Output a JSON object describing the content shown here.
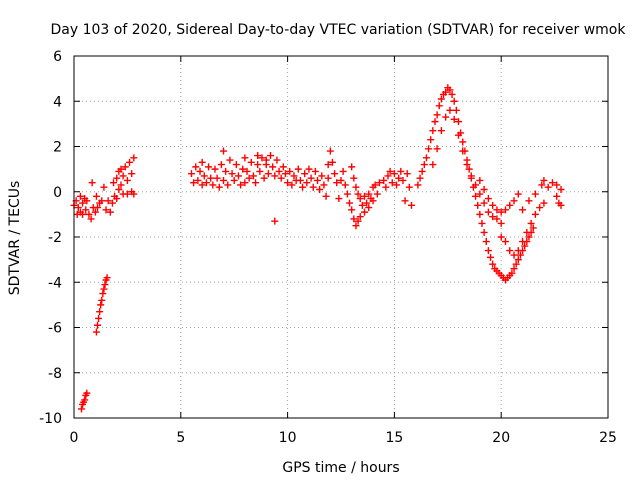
{
  "chart_data": {
    "type": "scatter",
    "title": "Day 103 of 2020, Sidereal Day-to-day VTEC variation (SDTVAR) for receiver wmok",
    "xlabel": "GPS time / hours",
    "ylabel": "SDTVAR / TECUs",
    "xlim": [
      0,
      25
    ],
    "ylim": [
      -10,
      6
    ],
    "grid": true,
    "marker": "plus",
    "color": "#ff0000",
    "x_ticks": [
      "0",
      "5",
      "10",
      "15",
      "20",
      "25"
    ],
    "y_ticks": [
      "-10",
      "-8",
      "-6",
      "-4",
      "-2",
      "0",
      "2",
      "4",
      "6"
    ],
    "series": [
      {
        "name": "SDTVAR",
        "points": [
          [
            0.0,
            -0.6
          ],
          [
            0.1,
            -0.4
          ],
          [
            0.15,
            -1.0
          ],
          [
            0.2,
            -0.7
          ],
          [
            0.3,
            -0.2
          ],
          [
            0.3,
            -0.9
          ],
          [
            0.4,
            -0.5
          ],
          [
            0.4,
            -1.0
          ],
          [
            0.5,
            -0.3
          ],
          [
            0.55,
            -0.8
          ],
          [
            0.6,
            -0.4
          ],
          [
            0.7,
            -1.0
          ],
          [
            0.8,
            -1.2
          ],
          [
            0.85,
            0.4
          ],
          [
            0.9,
            -0.7
          ],
          [
            1.0,
            -0.9
          ],
          [
            1.05,
            -0.2
          ],
          [
            1.1,
            -0.7
          ],
          [
            1.2,
            -0.5
          ],
          [
            1.3,
            -0.4
          ],
          [
            1.4,
            0.2
          ],
          [
            1.5,
            -0.8
          ],
          [
            1.6,
            -0.4
          ],
          [
            1.7,
            -0.9
          ],
          [
            0.35,
            -9.6
          ],
          [
            0.4,
            -9.4
          ],
          [
            0.45,
            -9.3
          ],
          [
            0.5,
            -9.2
          ],
          [
            0.55,
            -9.0
          ],
          [
            0.6,
            -8.9
          ],
          [
            1.05,
            -6.2
          ],
          [
            1.1,
            -5.9
          ],
          [
            1.15,
            -5.6
          ],
          [
            1.2,
            -5.3
          ],
          [
            1.25,
            -5.0
          ],
          [
            1.3,
            -4.8
          ],
          [
            1.35,
            -4.5
          ],
          [
            1.4,
            -4.3
          ],
          [
            1.45,
            -4.1
          ],
          [
            1.5,
            -3.9
          ],
          [
            1.55,
            -3.8
          ],
          [
            1.8,
            -0.5
          ],
          [
            1.85,
            0.4
          ],
          [
            1.9,
            -0.2
          ],
          [
            2.0,
            0.6
          ],
          [
            2.0,
            -0.3
          ],
          [
            2.1,
            0.9
          ],
          [
            2.1,
            0.1
          ],
          [
            2.2,
            0.3
          ],
          [
            2.2,
            1.0
          ],
          [
            2.3,
            0.7
          ],
          [
            2.3,
            -0.1
          ],
          [
            2.4,
            1.1
          ],
          [
            2.5,
            0.5
          ],
          [
            2.5,
            -0.1
          ],
          [
            2.6,
            1.3
          ],
          [
            2.7,
            0.8
          ],
          [
            2.7,
            0.0
          ],
          [
            2.8,
            1.5
          ],
          [
            2.8,
            -0.1
          ],
          [
            5.5,
            0.8
          ],
          [
            5.6,
            0.4
          ],
          [
            5.7,
            1.1
          ],
          [
            5.8,
            0.5
          ],
          [
            5.9,
            0.9
          ],
          [
            6.0,
            0.3
          ],
          [
            6.0,
            1.3
          ],
          [
            6.1,
            0.7
          ],
          [
            6.2,
            0.4
          ],
          [
            6.3,
            1.1
          ],
          [
            6.4,
            0.6
          ],
          [
            6.5,
            0.3
          ],
          [
            6.6,
            1.0
          ],
          [
            6.7,
            0.6
          ],
          [
            6.8,
            0.2
          ],
          [
            6.9,
            1.2
          ],
          [
            7.0,
            1.8
          ],
          [
            7.0,
            0.5
          ],
          [
            7.1,
            0.9
          ],
          [
            7.2,
            0.3
          ],
          [
            7.3,
            1.4
          ],
          [
            7.4,
            0.8
          ],
          [
            7.5,
            0.5
          ],
          [
            7.6,
            1.2
          ],
          [
            7.7,
            0.7
          ],
          [
            7.8,
            0.3
          ],
          [
            7.9,
            1.0
          ],
          [
            8.0,
            1.5
          ],
          [
            8.0,
            0.4
          ],
          [
            8.1,
            0.9
          ],
          [
            8.2,
            0.6
          ],
          [
            8.3,
            1.3
          ],
          [
            8.4,
            0.7
          ],
          [
            8.5,
            0.4
          ],
          [
            8.6,
            1.2
          ],
          [
            8.7,
            0.9
          ],
          [
            8.8,
            1.5
          ],
          [
            8.9,
            0.6
          ],
          [
            9.0,
            1.2
          ],
          [
            9.1,
            0.8
          ],
          [
            9.2,
            1.6
          ],
          [
            9.3,
            1.1
          ],
          [
            9.4,
            0.7
          ],
          [
            9.5,
            1.4
          ],
          [
            9.6,
            0.9
          ],
          [
            9.7,
            0.6
          ],
          [
            9.8,
            1.1
          ],
          [
            9.9,
            0.8
          ],
          [
            10.0,
            0.4
          ],
          [
            10.1,
            0.9
          ],
          [
            10.2,
            0.3
          ],
          [
            10.3,
            0.7
          ],
          [
            10.4,
            0.5
          ],
          [
            10.5,
            1.0
          ],
          [
            10.6,
            0.5
          ],
          [
            10.7,
            0.2
          ],
          [
            10.8,
            0.8
          ],
          [
            10.9,
            0.4
          ],
          [
            11.0,
            1.0
          ],
          [
            11.1,
            0.6
          ],
          [
            11.2,
            0.2
          ],
          [
            11.3,
            0.9
          ],
          [
            11.4,
            0.5
          ],
          [
            11.5,
            0.1
          ],
          [
            11.6,
            0.7
          ],
          [
            11.7,
            0.3
          ],
          [
            11.8,
            -0.2
          ],
          [
            11.9,
            0.6
          ],
          [
            9.4,
            -1.3
          ],
          [
            9.0,
            1.4
          ],
          [
            8.6,
            1.6
          ],
          [
            11.9,
            1.2
          ],
          [
            12.0,
            1.8
          ],
          [
            12.1,
            1.3
          ],
          [
            12.2,
            0.8
          ],
          [
            12.3,
            0.4
          ],
          [
            12.4,
            -0.3
          ],
          [
            12.5,
            0.5
          ],
          [
            12.6,
            0.9
          ],
          [
            12.7,
            0.3
          ],
          [
            12.8,
            -0.1
          ],
          [
            12.9,
            -0.5
          ],
          [
            13.0,
            1.1
          ],
          [
            13.0,
            -0.8
          ],
          [
            13.1,
            0.6
          ],
          [
            13.1,
            -1.2
          ],
          [
            13.2,
            0.2
          ],
          [
            13.2,
            -1.5
          ],
          [
            13.3,
            -0.1
          ],
          [
            13.3,
            -1.3
          ],
          [
            13.4,
            -0.3
          ],
          [
            13.4,
            -1.1
          ],
          [
            13.5,
            -0.6
          ],
          [
            13.6,
            -0.2
          ],
          [
            13.6,
            -0.9
          ],
          [
            13.7,
            -0.5
          ],
          [
            13.8,
            -0.1
          ],
          [
            13.8,
            -0.7
          ],
          [
            13.9,
            -0.3
          ],
          [
            14.0,
            0.2
          ],
          [
            14.0,
            -0.4
          ],
          [
            14.1,
            0.3
          ],
          [
            14.2,
            -0.1
          ],
          [
            14.3,
            0.4
          ],
          [
            14.5,
            0.5
          ],
          [
            14.6,
            0.2
          ],
          [
            14.7,
            0.7
          ],
          [
            14.8,
            0.9
          ],
          [
            14.9,
            0.4
          ],
          [
            15.0,
            0.8
          ],
          [
            15.1,
            0.3
          ],
          [
            15.2,
            0.6
          ],
          [
            15.3,
            0.9
          ],
          [
            15.4,
            0.5
          ],
          [
            15.5,
            -0.4
          ],
          [
            15.6,
            0.8
          ],
          [
            15.7,
            0.2
          ],
          [
            15.8,
            -0.6
          ],
          [
            16.1,
            0.3
          ],
          [
            16.2,
            0.6
          ],
          [
            16.3,
            0.9
          ],
          [
            16.4,
            1.2
          ],
          [
            16.5,
            1.5
          ],
          [
            16.6,
            1.9
          ],
          [
            16.7,
            2.3
          ],
          [
            16.8,
            2.7
          ],
          [
            16.9,
            3.1
          ],
          [
            17.0,
            3.4
          ],
          [
            17.1,
            3.8
          ],
          [
            17.2,
            4.1
          ],
          [
            17.3,
            4.3
          ],
          [
            17.4,
            4.4
          ],
          [
            17.5,
            4.6
          ],
          [
            17.6,
            4.5
          ],
          [
            17.7,
            4.3
          ],
          [
            17.8,
            4.0
          ],
          [
            17.9,
            3.6
          ],
          [
            18.0,
            3.1
          ],
          [
            18.1,
            2.6
          ],
          [
            18.2,
            2.2
          ],
          [
            18.3,
            1.8
          ],
          [
            18.4,
            1.4
          ],
          [
            18.5,
            1.0
          ],
          [
            18.6,
            0.6
          ],
          [
            18.7,
            0.2
          ],
          [
            18.8,
            -0.2
          ],
          [
            18.9,
            -0.6
          ],
          [
            19.0,
            -1.0
          ],
          [
            19.1,
            -1.4
          ],
          [
            19.2,
            -1.8
          ],
          [
            19.3,
            -2.2
          ],
          [
            19.4,
            -2.6
          ],
          [
            19.5,
            -2.9
          ],
          [
            16.8,
            1.2
          ],
          [
            17.0,
            1.9
          ],
          [
            17.2,
            2.7
          ],
          [
            17.4,
            3.3
          ],
          [
            17.6,
            3.6
          ],
          [
            17.8,
            3.2
          ],
          [
            18.0,
            2.5
          ],
          [
            18.2,
            1.8
          ],
          [
            18.4,
            1.2
          ],
          [
            18.6,
            0.7
          ],
          [
            18.8,
            0.3
          ],
          [
            19.0,
            -0.1
          ],
          [
            19.2,
            -0.5
          ],
          [
            19.4,
            -0.9
          ],
          [
            19.6,
            -1.1
          ],
          [
            19.8,
            -1.2
          ],
          [
            20.0,
            -1.4
          ],
          [
            19.0,
            0.5
          ],
          [
            19.2,
            0.1
          ],
          [
            19.4,
            -0.3
          ],
          [
            19.6,
            -0.6
          ],
          [
            19.8,
            -0.8
          ],
          [
            20.0,
            -0.9
          ],
          [
            20.2,
            -0.8
          ],
          [
            20.4,
            -0.6
          ],
          [
            20.6,
            -0.4
          ],
          [
            20.8,
            -0.1
          ],
          [
            19.6,
            -3.2
          ],
          [
            19.7,
            -3.4
          ],
          [
            19.8,
            -3.5
          ],
          [
            19.9,
            -3.6
          ],
          [
            20.0,
            -3.7
          ],
          [
            20.1,
            -3.8
          ],
          [
            20.2,
            -3.9
          ],
          [
            20.3,
            -3.8
          ],
          [
            20.4,
            -3.7
          ],
          [
            20.5,
            -3.6
          ],
          [
            20.6,
            -3.4
          ],
          [
            20.7,
            -3.2
          ],
          [
            20.8,
            -3.0
          ],
          [
            20.9,
            -2.8
          ],
          [
            21.0,
            -2.6
          ],
          [
            21.1,
            -2.4
          ],
          [
            21.2,
            -2.2
          ],
          [
            21.3,
            -2.0
          ],
          [
            21.4,
            -1.8
          ],
          [
            21.5,
            -1.6
          ],
          [
            20.0,
            -2.0
          ],
          [
            20.2,
            -2.2
          ],
          [
            20.4,
            -2.6
          ],
          [
            20.6,
            -2.8
          ],
          [
            20.8,
            -2.6
          ],
          [
            21.0,
            -2.2
          ],
          [
            21.2,
            -1.8
          ],
          [
            21.4,
            -1.4
          ],
          [
            21.6,
            -1.0
          ],
          [
            21.8,
            -0.7
          ],
          [
            22.0,
            -0.5
          ],
          [
            21.0,
            -0.8
          ],
          [
            21.3,
            -0.4
          ],
          [
            21.6,
            -0.1
          ],
          [
            21.9,
            0.3
          ],
          [
            22.0,
            0.5
          ],
          [
            22.2,
            0.2
          ],
          [
            22.4,
            0.4
          ],
          [
            22.6,
            0.3
          ],
          [
            22.8,
            0.1
          ],
          [
            22.6,
            -0.2
          ],
          [
            22.7,
            -0.5
          ],
          [
            22.8,
            -0.6
          ]
        ]
      }
    ]
  }
}
